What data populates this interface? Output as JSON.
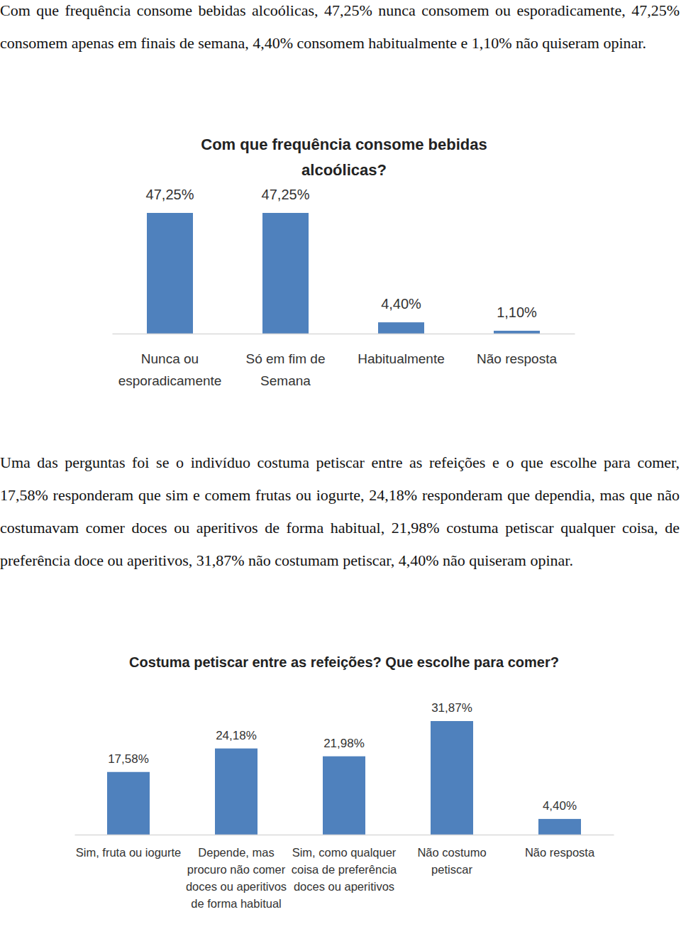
{
  "paragraphs": [
    "Com que frequência consome bebidas alcoólicas, 47,25% nunca consomem ou esporadicamente, 47,25% consomem apenas em finais de semana, 4,40% consomem habitualmente e 1,10% não quiseram opinar.",
    "Uma das perguntas foi se o indivíduo costuma petiscar entre as refeições e o que escolhe para comer, 17,58% responderam que sim e comem frutas ou iogurte, 24,18% responderam que dependia, mas que não costumavam comer doces ou aperitivos de forma habitual, 21,98% costuma petiscar qualquer coisa, de preferência doce ou aperitivos, 31,87% não costumam petiscar, 4,40% não quiseram opinar."
  ],
  "chart_data": [
    {
      "type": "bar",
      "title": "Com que frequência consome bebidas alcoólicas?",
      "categories": [
        "Nunca ou esporadicamente",
        "Só em fim de Semana",
        "Habitualmente",
        "Não resposta"
      ],
      "values": [
        47.25,
        47.25,
        4.4,
        1.1
      ],
      "value_labels": [
        "47,25%",
        "47,25%",
        "4,40%",
        "1,10%"
      ],
      "color": "#4f81bd",
      "data_labels": true,
      "tick_labels": "x",
      "grid": false
    },
    {
      "type": "bar",
      "title": "Costuma petiscar entre as refeições? Que escolhe para comer?",
      "categories": [
        "Sim, fruta ou iogurte",
        "Depende, mas procuro não comer doces ou aperitivos de forma habitual",
        "Sim, como qualquer coisa de preferência doces ou aperitivos",
        "Não costumo petiscar",
        "Não resposta"
      ],
      "values": [
        17.58,
        24.18,
        21.98,
        31.87,
        4.4
      ],
      "value_labels": [
        "17,58%",
        "24,18%",
        "21,98%",
        "31,87%",
        "4,40%"
      ],
      "color": "#4f81bd",
      "data_labels": true,
      "tick_labels": "x",
      "grid": false
    }
  ]
}
